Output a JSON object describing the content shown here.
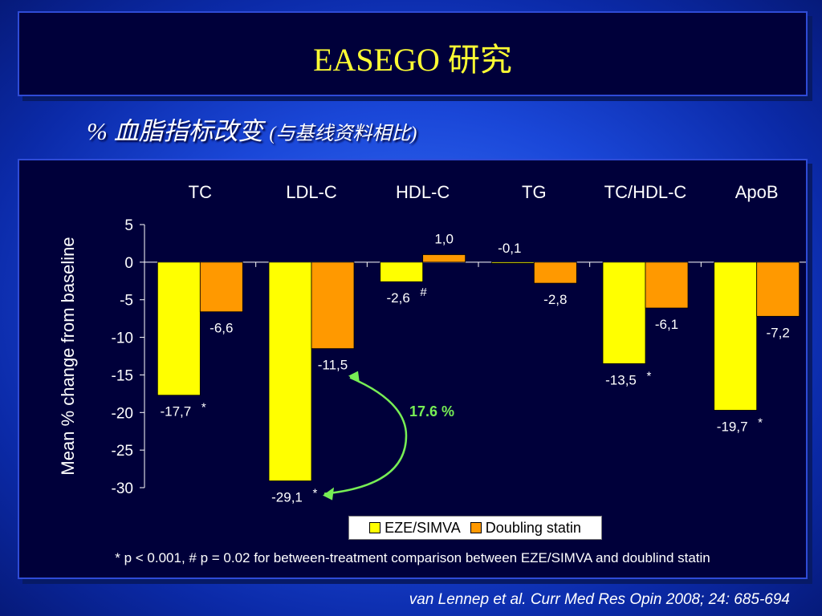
{
  "slide": {
    "title": "EASEGO 研究",
    "subtitle_main": "% 血脂指标改变 ",
    "subtitle_paren": "(与基线资料相比)",
    "footnote": "* p < 0.001, # p = 0.02 for between-treatment comparison between EZE/SIMVA and doublind statin",
    "citation": "van Lennep et al. Curr Med Res Opin 2008; 24: 685-694"
  },
  "colors": {
    "eze_simva": "#ffff00",
    "doubling_statin": "#ff9900",
    "annotation_arrow": "#77ee55"
  },
  "chart_data": {
    "type": "bar",
    "categories": [
      "TC",
      "LDL-C",
      "HDL-C",
      "TG",
      "TC/HDL-C",
      "ApoB"
    ],
    "series": [
      {
        "name": "EZE/SIMVA",
        "values": [
          -17.7,
          -29.1,
          -2.6,
          -0.1,
          -13.5,
          -19.7
        ]
      },
      {
        "name": "Doubling statin",
        "values": [
          -6.6,
          -11.5,
          1.0,
          -2.8,
          -6.1,
          -7.2
        ]
      }
    ],
    "value_labels": [
      [
        "-17,7",
        "-29,1",
        "-2,6",
        "-0,1",
        "-13,5",
        "-19,7"
      ],
      [
        "-6,6",
        "-11,5",
        "1,0",
        "-2,8",
        "-6,1",
        "-7,2"
      ]
    ],
    "significance_marks": [
      "*",
      "*",
      "#",
      "",
      "*",
      "*"
    ],
    "ylabel": "Mean % change from baseline",
    "ylim": [
      -30,
      5
    ],
    "yticks": [
      "5",
      "0",
      "-5",
      "-10",
      "-15",
      "-20",
      "-25",
      "-30"
    ],
    "grid": false,
    "legend_position": "bottom",
    "annotation": {
      "text": "17.6 %",
      "between": "LDL-C"
    }
  }
}
